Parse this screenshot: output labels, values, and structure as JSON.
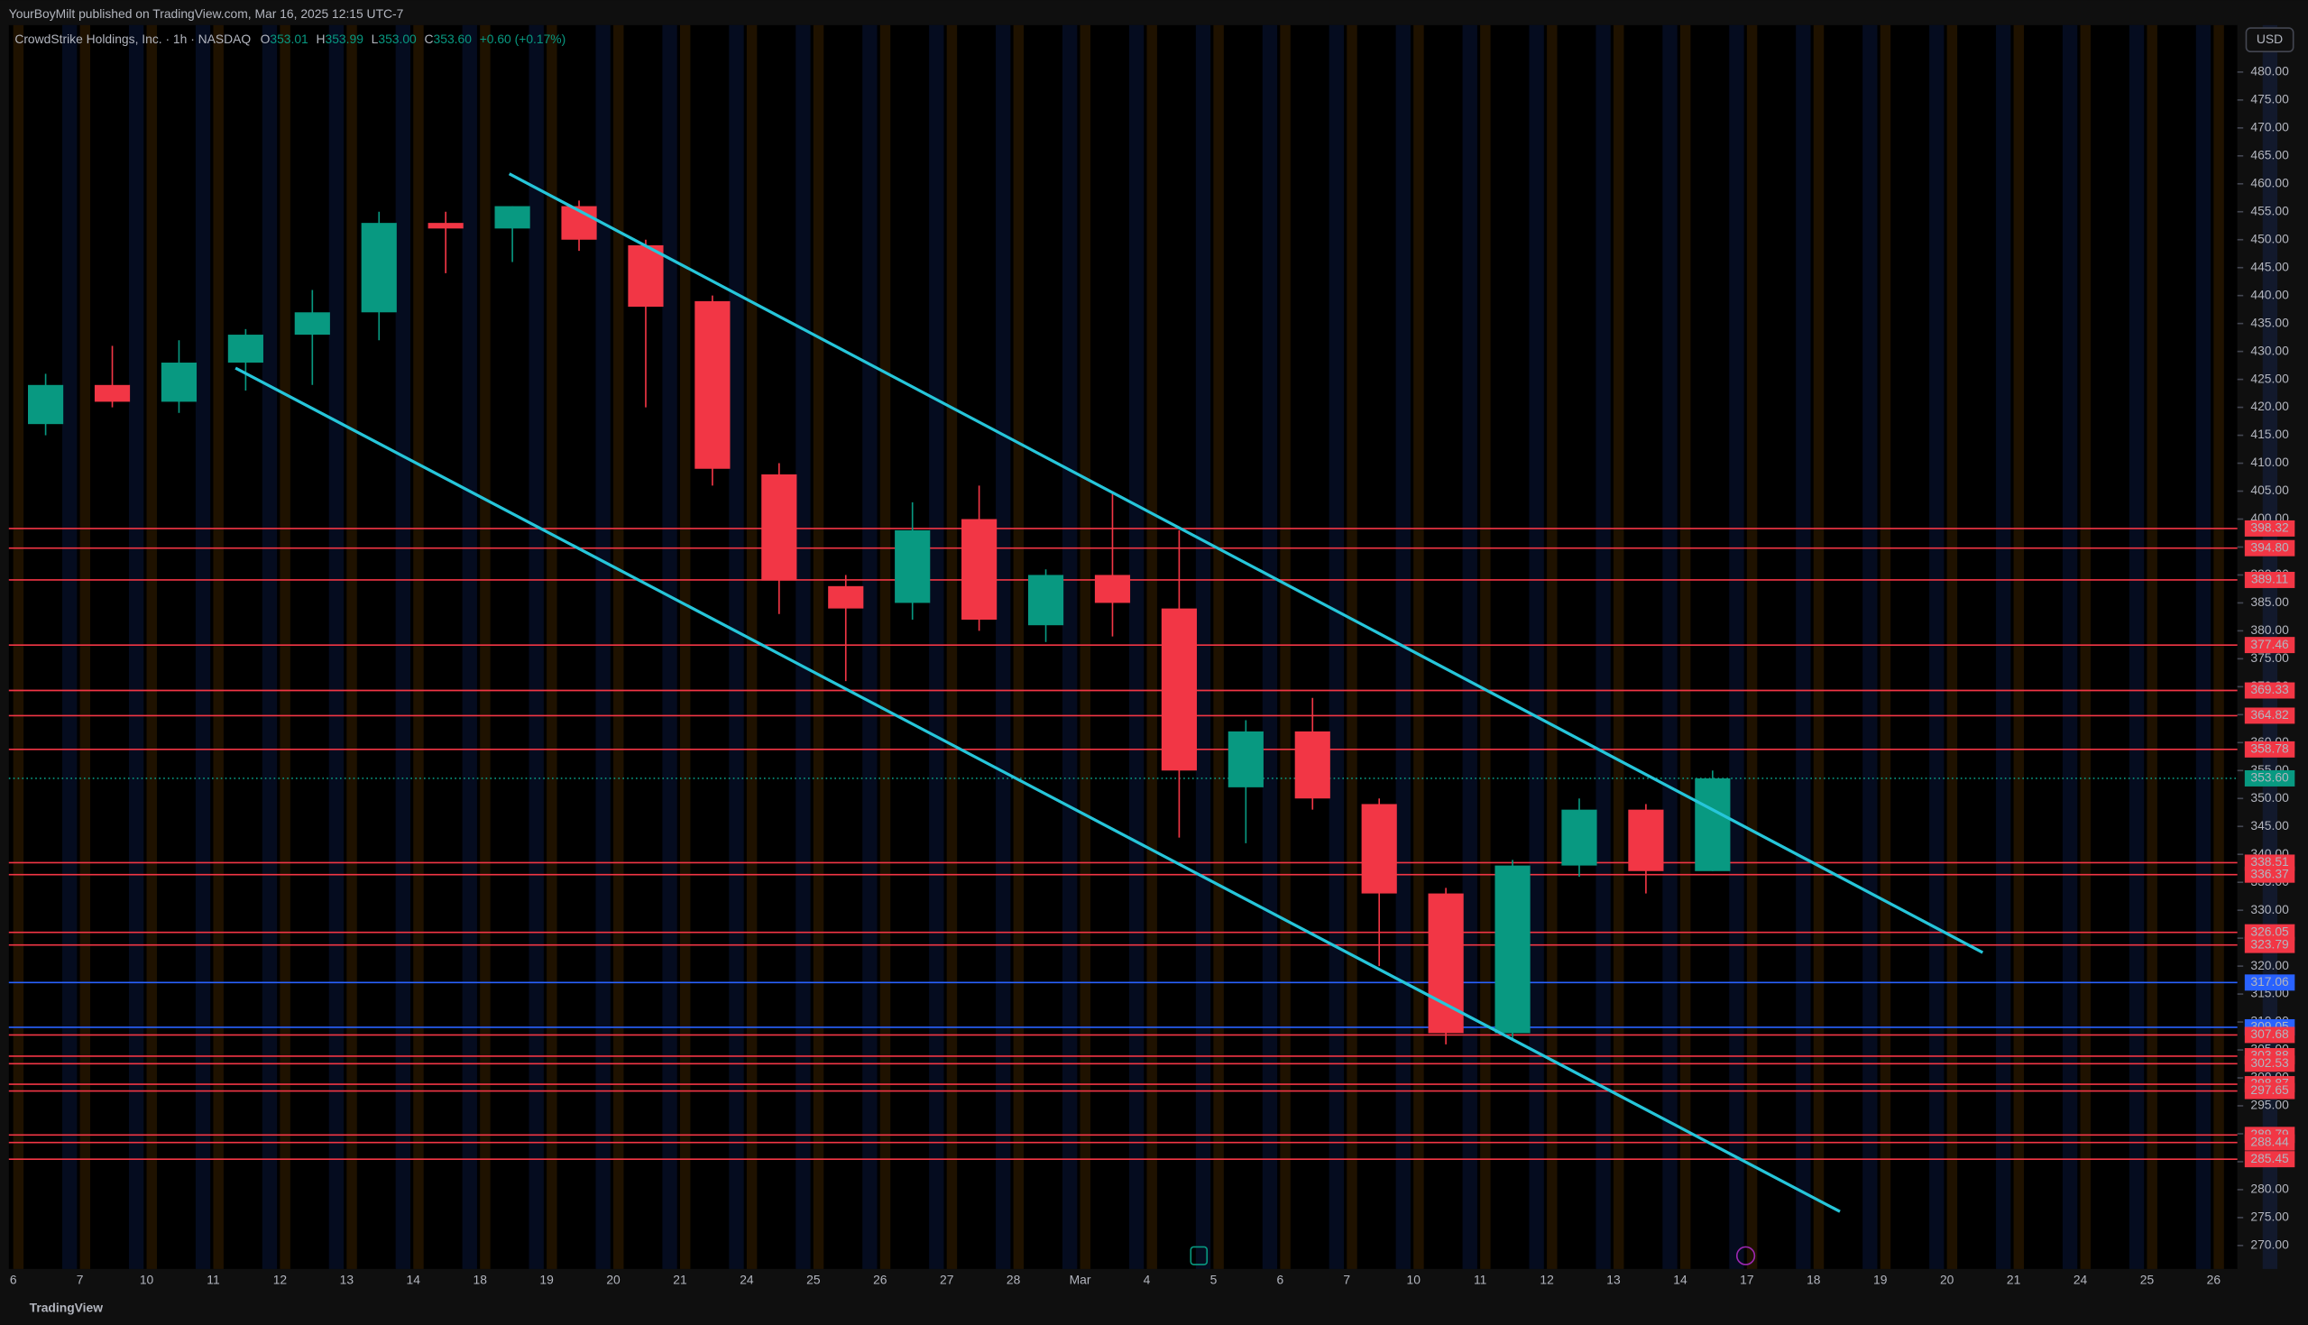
{
  "publisher": "YourBoyMilt published on TradingView.com, Mar 16, 2025 12:15 UTC-7",
  "footer": "TradingView",
  "currency": "USD",
  "legend": {
    "symbol": "CrowdStrike Holdings, Inc. · 1h · NASDAQ",
    "o_label": "O",
    "open": "353.01",
    "h_label": "H",
    "high": "353.99",
    "l_label": "L",
    "low": "353.00",
    "c_label": "C",
    "close": "353.60",
    "change": "+0.60 (+0.17%)"
  },
  "chart_data": {
    "type": "candlestick",
    "categories": [
      "6",
      "7",
      "10",
      "11",
      "12",
      "13",
      "14",
      "18",
      "19",
      "20",
      "21",
      "24",
      "25",
      "26",
      "27",
      "28",
      "Mar",
      "4",
      "5",
      "6",
      "7",
      "10",
      "11",
      "12",
      "13",
      "14",
      "17",
      "18",
      "19",
      "20",
      "21",
      "24",
      "25",
      "26"
    ],
    "open": [
      417,
      424,
      421,
      428,
      433,
      437,
      453,
      452,
      456,
      449,
      439,
      408,
      388,
      385,
      400,
      381,
      390,
      384,
      352,
      362,
      349,
      333,
      308,
      338,
      348,
      337,
      null,
      null,
      null,
      null,
      null,
      null,
      null,
      null
    ],
    "high": [
      426,
      431,
      432,
      434,
      441,
      455,
      455,
      456,
      457,
      450,
      440,
      410,
      390,
      403,
      406,
      391,
      405,
      398,
      364,
      368,
      350,
      334,
      339,
      350,
      349,
      355,
      null,
      null,
      null,
      null,
      null,
      null,
      null,
      null
    ],
    "low": [
      415,
      420,
      419,
      423,
      424,
      432,
      444,
      446,
      448,
      420,
      406,
      383,
      371,
      382,
      380,
      378,
      379,
      343,
      342,
      348,
      320,
      306,
      307,
      336,
      333,
      337,
      null,
      null,
      null,
      null,
      null,
      null,
      null,
      null
    ],
    "close": [
      424,
      421,
      428,
      433,
      437,
      453,
      452,
      456,
      450,
      438,
      409,
      389,
      384,
      398,
      382,
      390,
      385,
      355,
      362,
      350,
      333,
      308,
      338,
      348,
      337,
      353.6,
      null,
      null,
      null,
      null,
      null,
      null,
      null,
      null
    ],
    "up_color": "#089981",
    "down_color": "#f23645",
    "ylim": [
      265.8,
      488.4
    ],
    "yticks": [
      {
        "value": 270,
        "label": "270.00"
      },
      {
        "value": 275,
        "label": "275.00"
      },
      {
        "value": 280,
        "label": "280.00"
      },
      {
        "value": 285,
        "label": "285.00"
      },
      {
        "value": 290,
        "label": "290.00"
      },
      {
        "value": 295,
        "label": "295.00"
      },
      {
        "value": 300,
        "label": "300.00"
      },
      {
        "value": 305,
        "label": "305.00"
      },
      {
        "value": 310,
        "label": "310.00"
      },
      {
        "value": 315,
        "label": "315.00"
      },
      {
        "value": 320,
        "label": "320.00"
      },
      {
        "value": 325,
        "label": "325.00"
      },
      {
        "value": 330,
        "label": "330.00"
      },
      {
        "value": 335,
        "label": "335.00"
      },
      {
        "value": 340,
        "label": "340.00"
      },
      {
        "value": 345,
        "label": "345.00"
      },
      {
        "value": 350,
        "label": "350.00"
      },
      {
        "value": 355,
        "label": "355.00"
      },
      {
        "value": 360,
        "label": "360.00"
      },
      {
        "value": 365,
        "label": "365.00"
      },
      {
        "value": 370,
        "label": "370.00"
      },
      {
        "value": 375,
        "label": "375.00"
      },
      {
        "value": 380,
        "label": "380.00"
      },
      {
        "value": 385,
        "label": "385.00"
      },
      {
        "value": 390,
        "label": "390.00"
      },
      {
        "value": 395,
        "label": "395.00"
      },
      {
        "value": 400,
        "label": "400.00"
      },
      {
        "value": 405,
        "label": "405.00"
      },
      {
        "value": 410,
        "label": "410.00"
      },
      {
        "value": 415,
        "label": "415.00"
      },
      {
        "value": 420,
        "label": "420.00"
      },
      {
        "value": 425,
        "label": "425.00"
      },
      {
        "value": 430,
        "label": "430.00"
      },
      {
        "value": 435,
        "label": "435.00"
      },
      {
        "value": 440,
        "label": "440.00"
      },
      {
        "value": 445,
        "label": "445.00"
      },
      {
        "value": 450,
        "label": "450.00"
      },
      {
        "value": 455,
        "label": "455.00"
      },
      {
        "value": 460,
        "label": "460.00"
      },
      {
        "value": 465,
        "label": "465.00"
      },
      {
        "value": 470,
        "label": "470.00"
      },
      {
        "value": 475,
        "label": "475.00"
      },
      {
        "value": 480,
        "label": "480.00"
      }
    ],
    "levels": [
      {
        "value": 398.32,
        "color": "#f23645"
      },
      {
        "value": 394.8,
        "label": "394.80",
        "color": "#f23645"
      },
      {
        "value": 389.11,
        "color": "#f23645"
      },
      {
        "value": 377.46,
        "color": "#f23645"
      },
      {
        "value": 369.33,
        "color": "#f23645"
      },
      {
        "value": 364.82,
        "color": "#f23645"
      },
      {
        "value": 358.78,
        "color": "#f23645"
      },
      {
        "value": 338.51,
        "color": "#f23645"
      },
      {
        "value": 336.37,
        "color": "#f23645"
      },
      {
        "value": 326.05,
        "color": "#f23645"
      },
      {
        "value": 323.79,
        "color": "#f23645"
      },
      {
        "value": 317.06,
        "color": "#2962ff"
      },
      {
        "value": 309.05,
        "color": "#2962ff"
      },
      {
        "value": 307.68,
        "color": "#f23645"
      },
      {
        "value": 303.88,
        "color": "#f23645"
      },
      {
        "value": 302.53,
        "color": "#f23645"
      },
      {
        "value": 298.87,
        "color": "#f23645"
      },
      {
        "value": 297.65,
        "color": "#f23645"
      },
      {
        "value": 289.79,
        "color": "#f23645"
      },
      {
        "value": 288.44,
        "color": "#f23645"
      },
      {
        "value": 285.45,
        "color": "#f23645"
      }
    ],
    "last_price": {
      "value": 353.6,
      "label": "353.60",
      "color": "#089981"
    }
  }
}
